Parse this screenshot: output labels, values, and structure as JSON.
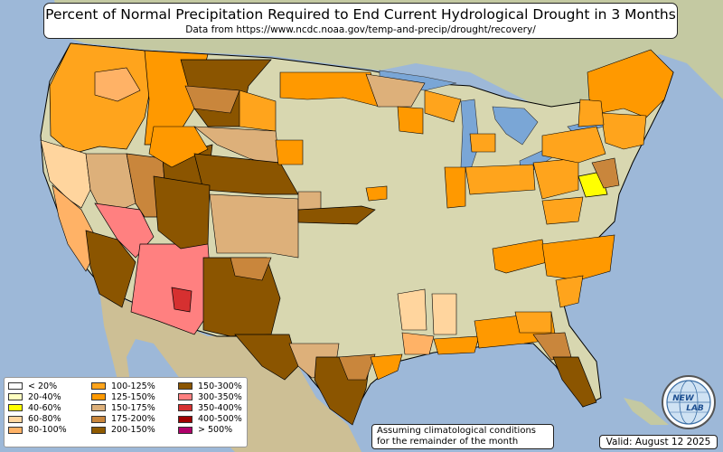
{
  "title": "Percent of Normal Precipitation Required to End Current Hydrological Drought in 3 Months",
  "subtitle": "Data from https://www.ncdc.noaa.gov/temp-and-precip/drought/recovery/",
  "legend": {
    "items": [
      {
        "label": "< 20%",
        "color": "#ffffff"
      },
      {
        "label": "20-40%",
        "color": "#ffffc0"
      },
      {
        "label": "40-60%",
        "color": "#ffff00"
      },
      {
        "label": "60-80%",
        "color": "#ffd59e"
      },
      {
        "label": "80-100%",
        "color": "#ffb266"
      },
      {
        "label": "100-125%",
        "color": "#ffa41c"
      },
      {
        "label": "125-150%",
        "color": "#ff9900"
      },
      {
        "label": "150-175%",
        "color": "#ddb07a"
      },
      {
        "label": "175-200%",
        "color": "#c9863c"
      },
      {
        "label": "200-150%",
        "color": "#8f5a00"
      },
      {
        "label": "150-300%",
        "color": "#8b5500"
      },
      {
        "label": "300-350%",
        "color": "#ff8080"
      },
      {
        "label": "350-400%",
        "color": "#d63030"
      },
      {
        "label": "400-500%",
        "color": "#a00000"
      },
      {
        "label": "> 500%",
        "color": "#b0006a"
      }
    ]
  },
  "note": {
    "line1": "Assuming climatological conditions",
    "line2": "for the remainder of the month"
  },
  "valid": "Valid: August 12 2025",
  "logo": {
    "text_top": "NEW",
    "text_bottom": "LAB",
    "icon": "globe-icon"
  },
  "colors": {
    "ocean": "#9db8d8",
    "land_us": "#d8d7b0",
    "land_other": "#c4c9a2",
    "mexico": "#cdbf95",
    "lakes": "#7aa6d6",
    "border": "#000000"
  }
}
